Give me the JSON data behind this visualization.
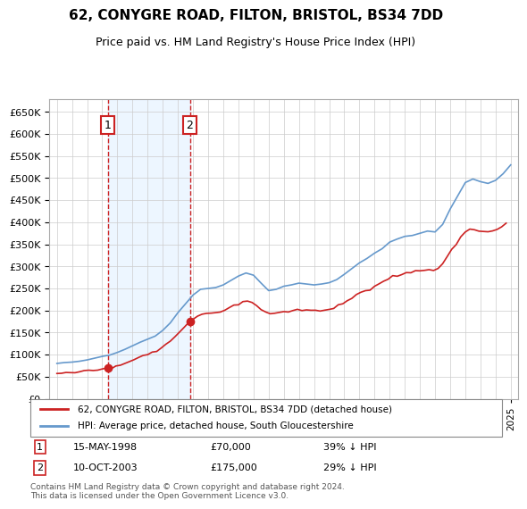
{
  "title": "62, CONYGRE ROAD, FILTON, BRISTOL, BS34 7DD",
  "subtitle": "Price paid vs. HM Land Registry's House Price Index (HPI)",
  "hpi_label": "HPI: Average price, detached house, South Gloucestershire",
  "property_label": "62, CONYGRE ROAD, FILTON, BRISTOL, BS34 7DD (detached house)",
  "hpi_color": "#6699cc",
  "property_color": "#cc2222",
  "marker_color": "#cc2222",
  "sale1_date": "15-MAY-1998",
  "sale1_price": 70000,
  "sale1_note": "39% ↓ HPI",
  "sale2_date": "10-OCT-2003",
  "sale2_price": 175000,
  "sale2_note": "29% ↓ HPI",
  "footer": "Contains HM Land Registry data © Crown copyright and database right 2024.\nThis data is licensed under the Open Government Licence v3.0.",
  "ylim": [
    0,
    680000
  ],
  "yticks": [
    0,
    50000,
    100000,
    150000,
    200000,
    250000,
    300000,
    350000,
    400000,
    450000,
    500000,
    550000,
    600000,
    650000
  ],
  "xlim_start": 1994.5,
  "xlim_end": 2025.5
}
